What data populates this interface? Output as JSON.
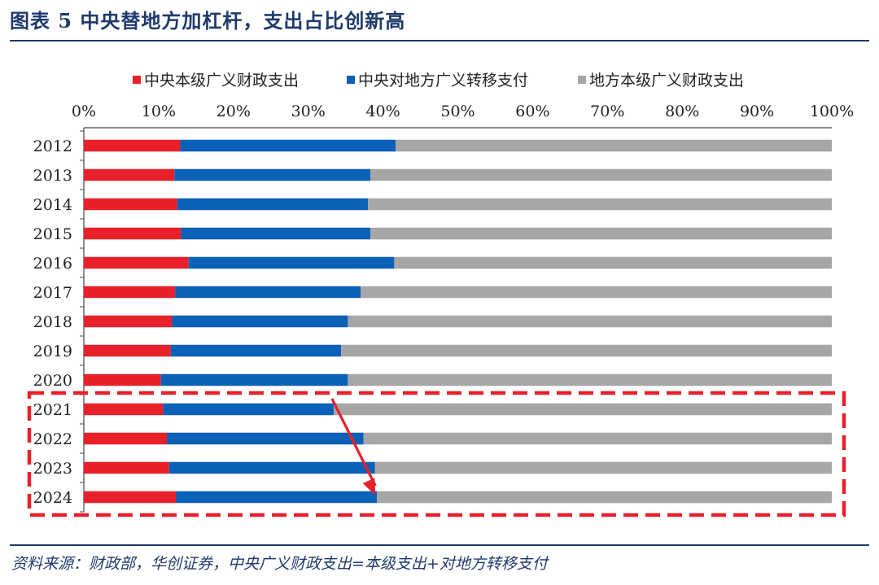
{
  "header": {
    "title": "图表 5   中央替地方加杠杆，支出占比创新高"
  },
  "footer": {
    "source": "资料来源：财政部，华创证券，中央广义财政支出=本级支出+对地方转移支付"
  },
  "colors": {
    "central_own": "#e8202a",
    "transfer": "#0b60b7",
    "local_own": "#a6a6a6",
    "highlight": "#e8202a",
    "accent": "#1f3a6b"
  },
  "chart_data": {
    "type": "bar",
    "orientation": "horizontal",
    "stacked": true,
    "categories": [
      "2012",
      "2013",
      "2014",
      "2015",
      "2016",
      "2017",
      "2018",
      "2019",
      "2020",
      "2021",
      "2022",
      "2023",
      "2024"
    ],
    "series": [
      {
        "name": "中央本级广义财政支出",
        "values": [
          12.9,
          12.1,
          12.5,
          13.0,
          14.0,
          12.2,
          11.8,
          11.6,
          10.3,
          10.6,
          11.1,
          11.4,
          12.3
        ]
      },
      {
        "name": "中央对地方广义转移支付",
        "values": [
          28.8,
          26.2,
          25.5,
          25.3,
          27.5,
          24.8,
          23.5,
          22.8,
          25.0,
          22.8,
          26.3,
          27.5,
          26.9
        ]
      },
      {
        "name": "地方本级广义财政支出",
        "values": [
          58.3,
          61.7,
          62.0,
          61.7,
          58.5,
          63.0,
          64.7,
          65.6,
          64.7,
          66.6,
          62.6,
          61.1,
          60.8
        ]
      }
    ],
    "xlim": [
      0,
      100
    ],
    "x_ticks": [
      "0%",
      "10%",
      "20%",
      "30%",
      "40%",
      "50%",
      "60%",
      "70%",
      "80%",
      "90%",
      "100%"
    ],
    "legend_position": "top",
    "grid": false,
    "annotations": [
      {
        "type": "dashed-box",
        "from_category": "2021",
        "to_category": "2024"
      },
      {
        "type": "arrow",
        "from": {
          "category": "2021",
          "value": 33.4
        },
        "to": {
          "category": "2024",
          "value": 39.2
        }
      }
    ]
  }
}
